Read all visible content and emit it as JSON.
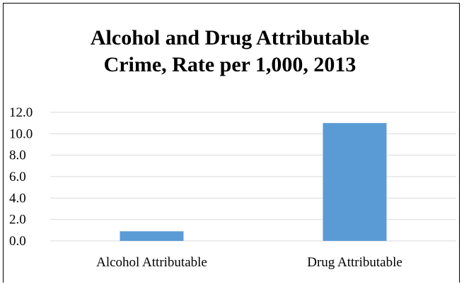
{
  "chart_data": {
    "type": "bar",
    "title_lines": [
      "Alcohol and Drug Attributable",
      "Crime, Rate per 1,000, 2013"
    ],
    "categories": [
      "Alcohol Attributable",
      "Drug Attributable"
    ],
    "values": [
      0.9,
      11.0
    ],
    "ylim": [
      0,
      12
    ],
    "yticks": [
      "0.0",
      "2.0",
      "4.0",
      "6.0",
      "8.0",
      "10.0",
      "12.0"
    ],
    "xlabel": "",
    "ylabel": "",
    "grid": true,
    "bar_color": "#5B9BD5",
    "gridline_color": "#D9D9D9"
  }
}
